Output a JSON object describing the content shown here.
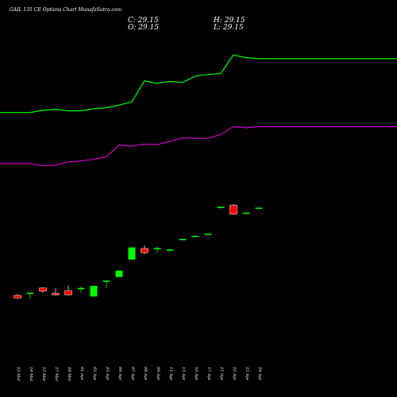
{
  "title": "GAIL 135 CE Options Chart MunafaSutra.com",
  "ohlc": {
    "c": "C: 29.15",
    "o": "O: 29.15",
    "h": "H: 29.15",
    "l": "L: 29.15"
  },
  "colors": {
    "background": "#000000",
    "up": "#00ff00",
    "down": "#ff0000",
    "upper_band": "#00ff00",
    "lower_band": "#cc00cc",
    "text": "#ffffff"
  },
  "chart_data": {
    "type": "candlestick",
    "title": "GAIL 135 CE Options Chart MunafaSutra.com",
    "x": [
      "23 Mar",
      "24 Mar",
      "25 Mar",
      "27 Mar",
      "28 Mar",
      "01 Apr",
      "02 Apr",
      "03 Apr",
      "04 Apr",
      "07 Apr",
      "08 Apr",
      "09 Apr",
      "11 Apr",
      "15 Apr",
      "16 Apr",
      "17 Apr",
      "21 Apr",
      "22 Apr",
      "23 Apr",
      "24 Apr"
    ],
    "candles": [
      {
        "open": 12.5,
        "high": 12.8,
        "low": 11.9,
        "close": 12.0
      },
      {
        "open": 12.8,
        "high": 13.0,
        "low": 11.8,
        "close": 13.0
      },
      {
        "open": 13.9,
        "high": 14.0,
        "low": 13.0,
        "close": 13.3
      },
      {
        "open": 12.9,
        "high": 13.9,
        "low": 12.5,
        "close": 12.6
      },
      {
        "open": 13.4,
        "high": 14.4,
        "low": 12.5,
        "close": 12.6
      },
      {
        "open": 13.7,
        "high": 14.2,
        "low": 13.0,
        "close": 13.9
      },
      {
        "open": 12.3,
        "high": 14.3,
        "low": 12.2,
        "close": 14.3
      },
      {
        "open": 15.1,
        "high": 15.3,
        "low": 13.8,
        "close": 15.3
      },
      {
        "open": 16.0,
        "high": 17.2,
        "low": 16.0,
        "close": 17.2
      },
      {
        "open": 19.3,
        "high": 21.6,
        "low": 19.3,
        "close": 21.6
      },
      {
        "open": 21.4,
        "high": 22.0,
        "low": 20.3,
        "close": 20.6
      },
      {
        "open": 21.4,
        "high": 21.7,
        "low": 20.5,
        "close": 21.5
      },
      {
        "open": 21.0,
        "high": 21.2,
        "low": 20.8,
        "close": 21.2
      },
      {
        "open": 23.1,
        "high": 23.2,
        "low": 23.0,
        "close": 23.2
      },
      {
        "open": 23.7,
        "high": 23.8,
        "low": 23.6,
        "close": 23.8
      },
      {
        "open": 24.1,
        "high": 24.2,
        "low": 24.0,
        "close": 24.2
      },
      {
        "open": 29.1,
        "high": 29.4,
        "low": 28.9,
        "close": 29.3
      },
      {
        "open": 29.6,
        "high": 29.9,
        "low": 27.8,
        "close": 27.9
      },
      {
        "open": 28.1,
        "high": 28.2,
        "low": 28.0,
        "close": 28.2
      },
      {
        "open": 29.15,
        "high": 29.15,
        "low": 29.15,
        "close": 29.15
      }
    ],
    "series": [
      {
        "values": [
          47.2,
          47.2,
          47.6,
          47.8,
          47.5,
          47.5,
          47.9,
          48.1,
          48.6,
          49.2,
          53.2,
          52.7,
          53.1,
          52.9,
          54.1,
          54.4,
          54.6,
          58.1,
          57.6,
          57.4
        ]
      },
      {
        "values": [
          37.5,
          37.5,
          37.1,
          37.2,
          37.8,
          38.0,
          38.3,
          38.8,
          41.0,
          40.8,
          41.2,
          41.1,
          41.7,
          42.4,
          42.3,
          42.3,
          43.0,
          44.5,
          44.3,
          44.5
        ]
      }
    ],
    "ylim": [
      0,
      61
    ],
    "grid": false
  }
}
